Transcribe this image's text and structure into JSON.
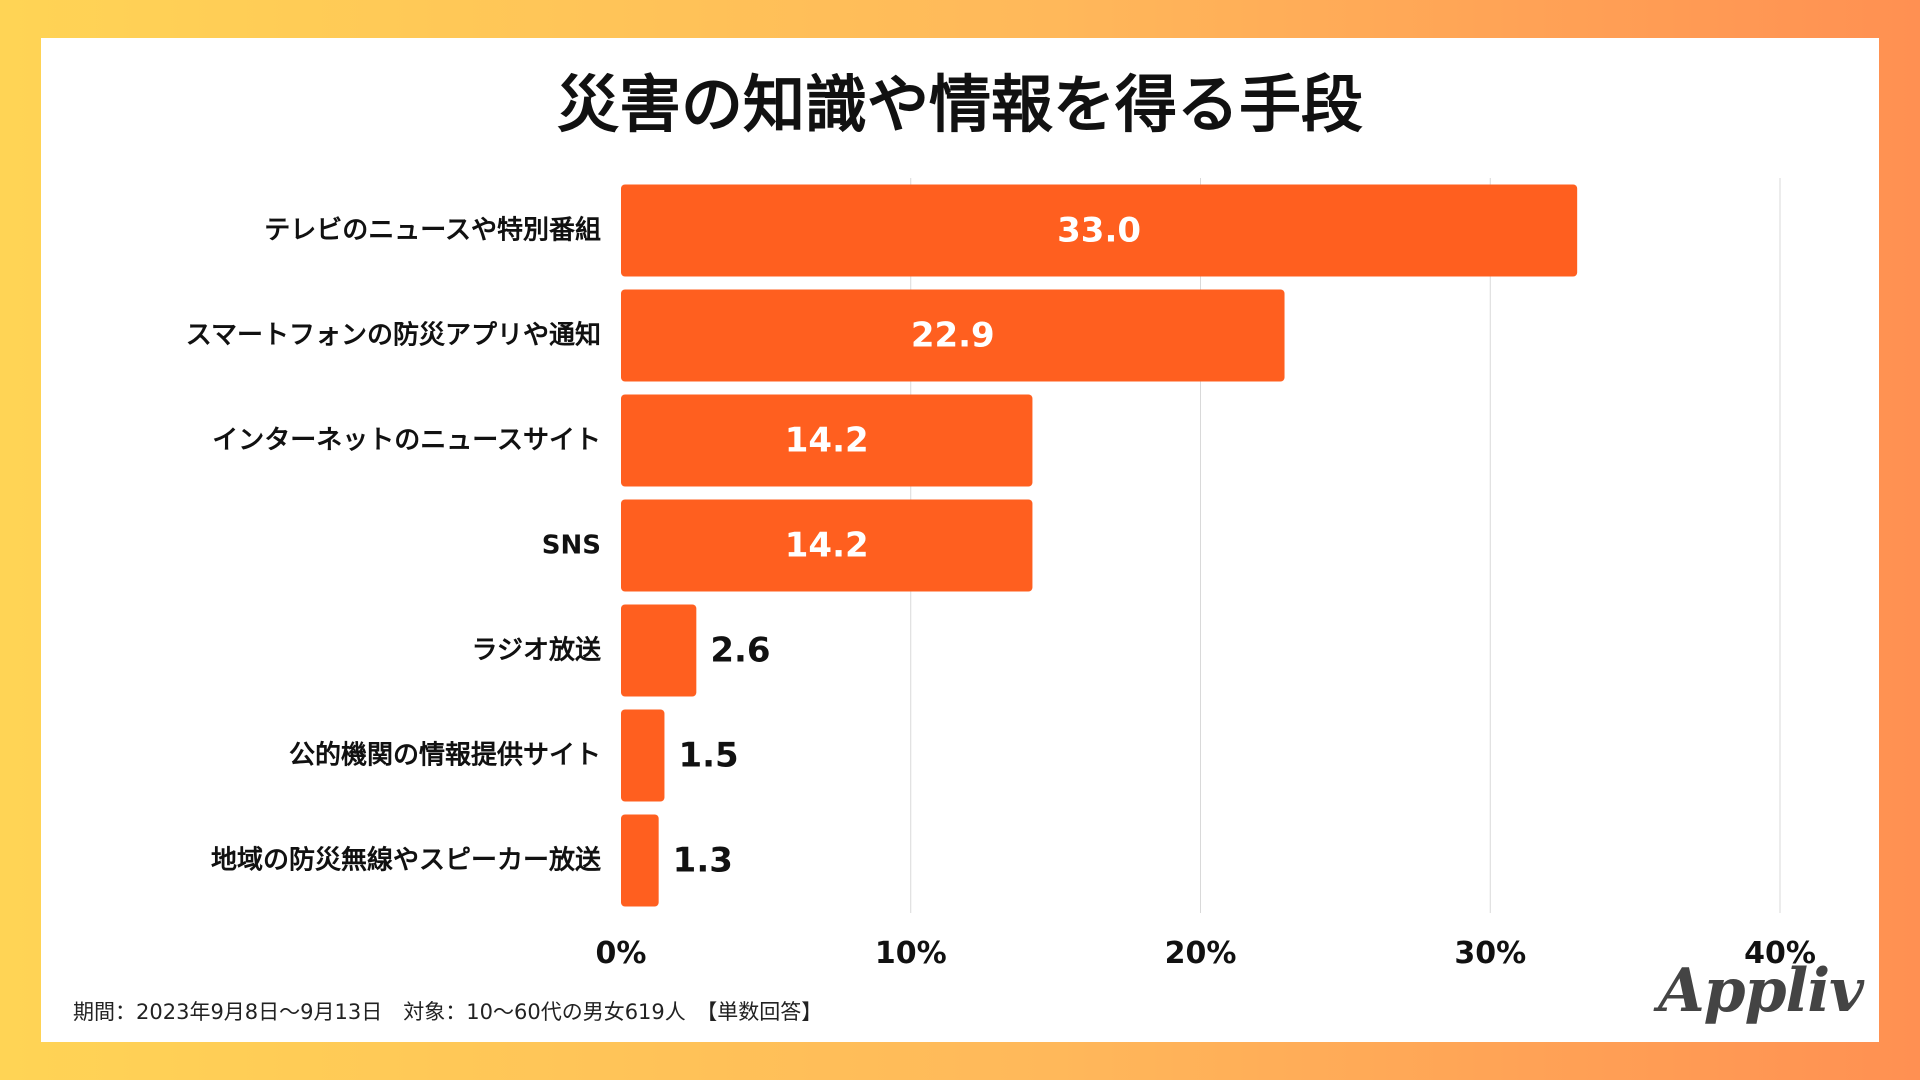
{
  "colors": {
    "bar": "#ff5f1f",
    "inside_label": "#ffffff",
    "outside_label": "#111111",
    "grid": "#d9d9d9",
    "category_text": "#111111"
  },
  "footnote": "期間：2023年9月8日〜9月13日　対象：10〜60代の男女619人　【単数回答】",
  "logo": "Appliv",
  "chart_data": {
    "type": "bar",
    "orientation": "horizontal",
    "title": "災害の知識や情報を得る手段",
    "categories": [
      "テレビのニュースや特別番組",
      "スマートフォンの防災アプリや通知",
      "インターネットのニュースサイト",
      "SNS",
      "ラジオ放送",
      "公的機関の情報提供サイト",
      "地域の防災無線やスピーカー放送"
    ],
    "values": [
      33.0,
      22.9,
      14.2,
      14.2,
      2.6,
      1.5,
      1.3
    ],
    "value_labels": [
      "33.0",
      "22.9",
      "14.2",
      "14.2",
      "2.6",
      "1.5",
      "1.3"
    ],
    "xlim": [
      0,
      40
    ],
    "xticks": [
      0,
      10,
      20,
      30,
      40
    ],
    "xtick_labels": [
      "0%",
      "10%",
      "20%",
      "30%",
      "40%"
    ],
    "xlabel": "",
    "ylabel": "",
    "grid": true,
    "legend": "none"
  }
}
